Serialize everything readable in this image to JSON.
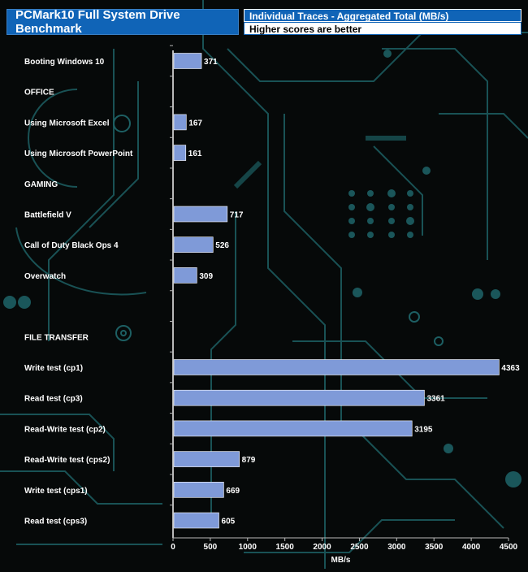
{
  "title": "PCMark10 Full System Drive Benchmark",
  "subtitle": "Individual Traces - Aggregated Total (MB/s)",
  "note": "Higher scores are better",
  "colors": {
    "bar": "#7f9ad8",
    "title_bg": "#1064b7",
    "circuit": "#1d5f63"
  },
  "chart_data": {
    "type": "bar",
    "orientation": "horizontal",
    "categories": [
      "Booting Windows 10",
      "OFFICE",
      "Using Microsoft Excel",
      "Using Microsoft PowerPoint",
      "GAMING",
      "Battlefield V",
      "Call of Duty Black Ops 4",
      "Overwatch",
      "",
      "FILE TRANSFER",
      "Write test (cp1)",
      "Read test (cp3)",
      "Read-Write test (cp2)",
      "Read-Write test (cps2)",
      "Write test (cps1)",
      "Read test (cps3)"
    ],
    "values": [
      371,
      null,
      167,
      161,
      null,
      717,
      526,
      309,
      null,
      null,
      4363,
      3361,
      3195,
      879,
      669,
      605
    ],
    "xlim": [
      0,
      4500
    ],
    "xticks": [
      0,
      500,
      1000,
      1500,
      2000,
      2500,
      3000,
      3500,
      4000,
      4500
    ],
    "xlabel": "MB/s",
    "ylabel": ""
  }
}
